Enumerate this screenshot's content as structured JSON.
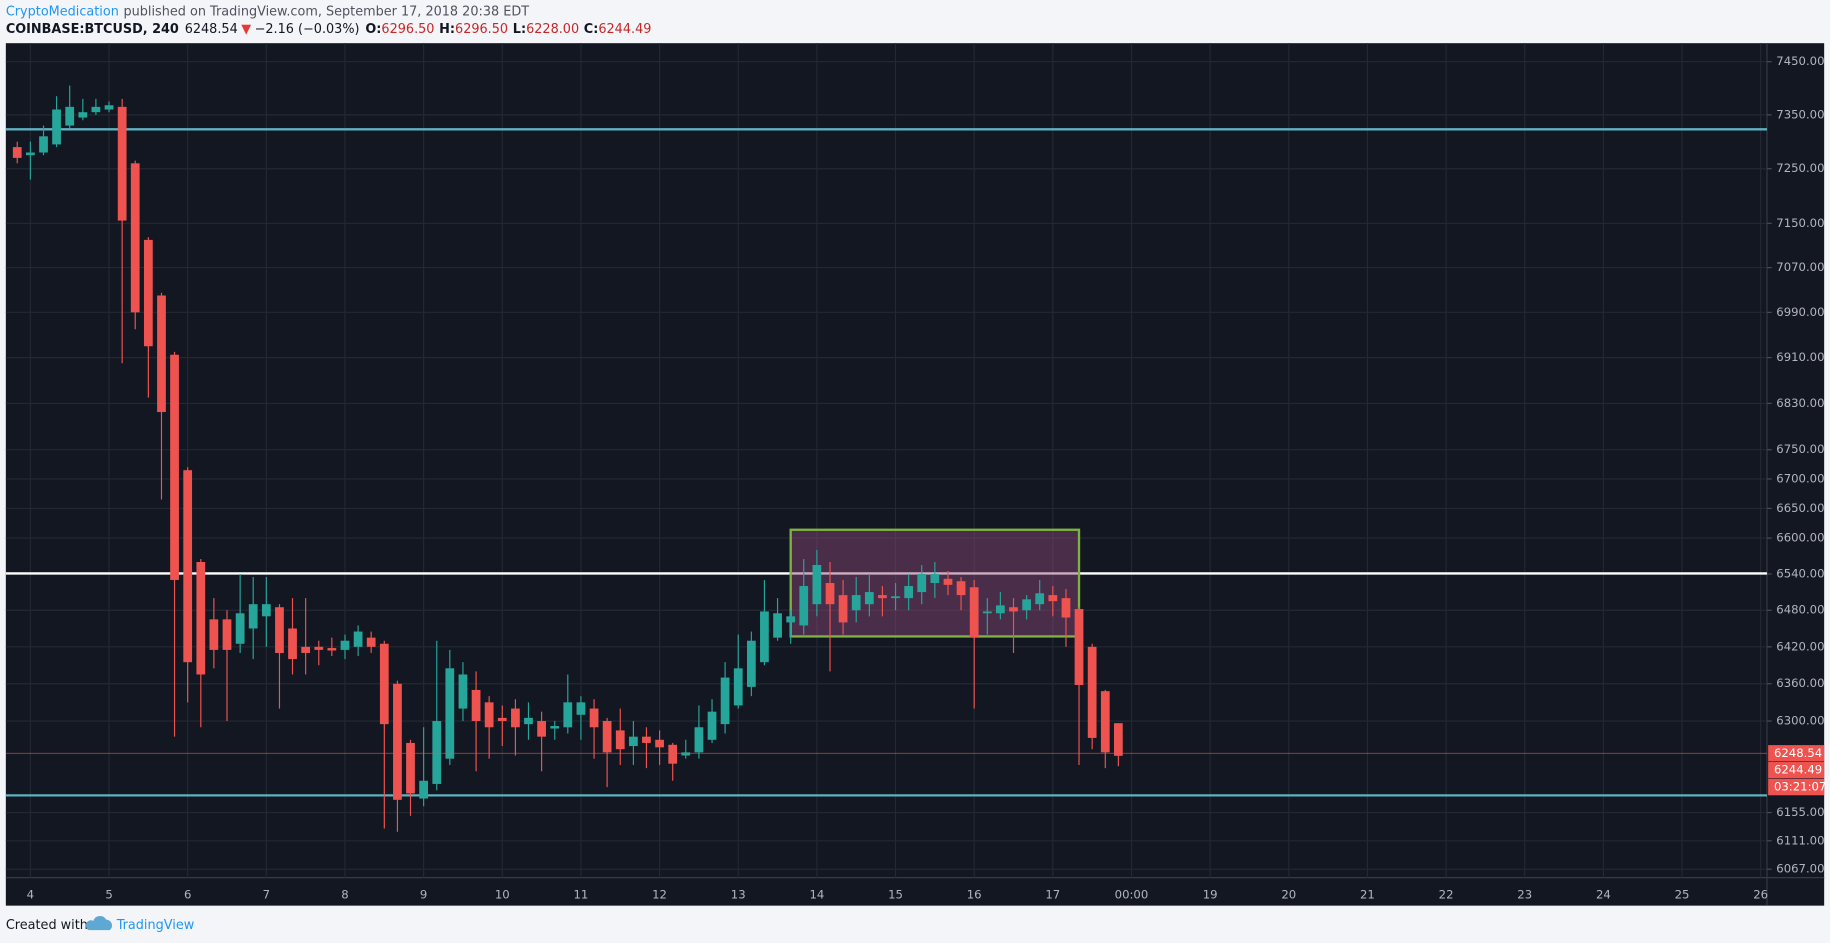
{
  "header": {
    "author": "CryptoMedication",
    "published": "published on TradingView.com, September 17, 2018 20:38 EDT",
    "symbol": "COINBASE:BTCUSD, 240",
    "price": "6248.54",
    "arrow": "▼",
    "change": "−2.16 (−0.03%)",
    "o_label": "O:",
    "o": "6296.50",
    "h_label": "H:",
    "h": "6296.50",
    "l_label": "L:",
    "l": "6228.00",
    "c_label": "C:",
    "c": "6244.49"
  },
  "chart_data": {
    "type": "candlestick",
    "x": [
      3.833,
      4,
      4.167,
      4.333,
      4.5,
      4.667,
      4.833,
      5,
      5.167,
      5.333,
      5.5,
      5.667,
      5.833,
      6,
      6.167,
      6.333,
      6.5,
      6.667,
      6.833,
      7,
      7.167,
      7.333,
      7.5,
      7.667,
      7.833,
      8,
      8.167,
      8.333,
      8.5,
      8.667,
      8.833,
      9,
      9.167,
      9.333,
      9.5,
      9.667,
      9.833,
      10,
      10.167,
      10.333,
      10.5,
      10.667,
      10.833,
      11,
      11.167,
      11.333,
      11.5,
      11.667,
      11.833,
      12,
      12.167,
      12.333,
      12.5,
      12.667,
      12.833,
      13,
      13.167,
      13.333,
      13.5,
      13.667,
      13.833,
      14,
      14.167,
      14.333,
      14.5,
      14.667,
      14.833,
      15,
      15.167,
      15.333,
      15.5,
      15.667,
      15.833,
      16,
      16.167,
      16.333,
      16.5,
      16.667,
      16.833,
      17,
      17.167,
      17.333,
      17.5,
      17.667,
      17.833
    ],
    "open": [
      7290,
      7275,
      7280,
      7295,
      7330,
      7345,
      7355,
      7360,
      7365,
      7260,
      7120,
      7020,
      6915,
      6715,
      6560,
      6465,
      6465,
      6425,
      6450,
      6470,
      6485,
      6450,
      6420,
      6420,
      6418,
      6415,
      6420,
      6435,
      6425,
      6360,
      6265,
      6177,
      6200,
      6240,
      6320,
      6350,
      6330,
      6305,
      6320,
      6295,
      6300,
      6288,
      6290,
      6310,
      6320,
      6300,
      6285,
      6260,
      6275,
      6270,
      6262,
      6245,
      6250,
      6270,
      6295,
      6325,
      6355,
      6395,
      6435,
      6460,
      6455,
      6490,
      6525,
      6505,
      6480,
      6490,
      6505,
      6500,
      6500,
      6510,
      6525,
      6532,
      6528,
      6518,
      6475,
      6475,
      6485,
      6480,
      6490,
      6505,
      6500,
      6482,
      6420,
      6348,
      6296.5
    ],
    "high": [
      7300,
      7300,
      7330,
      7385,
      7405,
      7380,
      7380,
      7375,
      7380,
      7265,
      7125,
      7025,
      6920,
      6720,
      6565,
      6500,
      6480,
      6540,
      6535,
      6535,
      6490,
      6500,
      6500,
      6430,
      6435,
      6440,
      6455,
      6445,
      6430,
      6365,
      6270,
      6290,
      6430,
      6415,
      6395,
      6380,
      6340,
      6325,
      6335,
      6330,
      6315,
      6300,
      6375,
      6340,
      6335,
      6305,
      6320,
      6300,
      6290,
      6285,
      6265,
      6270,
      6325,
      6335,
      6395,
      6440,
      6445,
      6530,
      6500,
      6480,
      6565,
      6580,
      6560,
      6530,
      6535,
      6540,
      6520,
      6525,
      6540,
      6555,
      6560,
      6545,
      6535,
      6530,
      6500,
      6510,
      6500,
      6505,
      6530,
      6520,
      6515,
      6485,
      6425,
      6350,
      6296.5
    ],
    "low": [
      7260,
      7230,
      7275,
      7290,
      7325,
      7340,
      7350,
      7355,
      6900,
      6960,
      6840,
      6665,
      6275,
      6330,
      6290,
      6385,
      6300,
      6410,
      6400,
      6420,
      6320,
      6375,
      6375,
      6390,
      6405,
      6400,
      6405,
      6410,
      6130,
      6125,
      6150,
      6165,
      6190,
      6230,
      6300,
      6220,
      6240,
      6260,
      6245,
      6270,
      6220,
      6270,
      6280,
      6270,
      6240,
      6195,
      6230,
      6230,
      6225,
      6230,
      6205,
      6240,
      6240,
      6265,
      6280,
      6320,
      6340,
      6390,
      6430,
      6425,
      6440,
      6470,
      6380,
      6440,
      6460,
      6470,
      6470,
      6480,
      6480,
      6490,
      6500,
      6505,
      6480,
      6320,
      6440,
      6465,
      6410,
      6465,
      6480,
      6470,
      6420,
      6230,
      6255,
      6225,
      6228
    ],
    "close": [
      7270,
      7280,
      7310,
      7360,
      7365,
      7355,
      7365,
      7368,
      7155,
      6990,
      6930,
      6815,
      6530,
      6395,
      6375,
      6415,
      6415,
      6475,
      6490,
      6490,
      6410,
      6400,
      6410,
      6415,
      6414,
      6430,
      6445,
      6420,
      6295,
      6175,
      6185,
      6205,
      6300,
      6385,
      6375,
      6300,
      6290,
      6300,
      6290,
      6305,
      6275,
      6292,
      6330,
      6330,
      6290,
      6250,
      6255,
      6275,
      6265,
      6258,
      6232,
      6250,
      6290,
      6315,
      6370,
      6385,
      6430,
      6478,
      6475,
      6470,
      6520,
      6555,
      6490,
      6460,
      6505,
      6510,
      6500,
      6503,
      6520,
      6540,
      6540,
      6522,
      6505,
      6435,
      6478,
      6488,
      6478,
      6498,
      6508,
      6495,
      6468,
      6358,
      6273,
      6250,
      6244.49
    ],
    "up_color": "#26a69a",
    "down_color": "#ef5350",
    "xlim": [
      3.688,
      26.08
    ],
    "xticks": [
      4,
      5,
      6,
      7,
      8,
      9,
      10,
      11,
      12,
      13,
      14,
      15,
      16,
      17,
      {
        "value": 18,
        "label": "00:00"
      },
      19,
      20,
      21,
      22,
      23,
      24,
      25,
      26
    ],
    "ylim": [
      6054,
      7483
    ],
    "log_scale": true,
    "grid": true,
    "yticks": [
      {
        "value": 7450,
        "label": "7450.00"
      },
      {
        "value": 7350,
        "label": "7350.00"
      },
      {
        "value": 7250,
        "label": "7250.00"
      },
      {
        "value": 7150,
        "label": "7150.00"
      },
      {
        "value": 7070,
        "label": "7070.00"
      },
      {
        "value": 6990,
        "label": "6990.00"
      },
      {
        "value": 6910,
        "label": "6910.00"
      },
      {
        "value": 6830,
        "label": "6830.00"
      },
      {
        "value": 6750,
        "label": "6750.00"
      },
      {
        "value": 6700,
        "label": "6700.00"
      },
      {
        "value": 6650,
        "label": "6650.00"
      },
      {
        "value": 6600,
        "label": "6600.00"
      },
      {
        "value": 6540,
        "label": "6540.00"
      },
      {
        "value": 6480,
        "label": "6480.00"
      },
      {
        "value": 6420,
        "label": "6420.00"
      },
      {
        "value": 6360,
        "label": "6360.00"
      },
      {
        "value": 6300,
        "label": "6300.00"
      },
      {
        "value": 6155,
        "label": "6155.00"
      },
      {
        "value": 6111,
        "label": "6111.00"
      },
      {
        "value": 6067,
        "label": "6067.00"
      }
    ],
    "levels": [
      {
        "value": 7323,
        "color": "#5fb3c1"
      },
      {
        "value": 6541,
        "color": "#ffffff"
      },
      {
        "value": 6182,
        "color": "#5fb3c1"
      }
    ],
    "box": {
      "x": [
        13.667,
        17.333
      ],
      "y": [
        6437,
        6614
      ],
      "color": "#7cb342",
      "fill": "#8e4a7a"
    },
    "price_tags": [
      6248.54,
      6244.49
    ],
    "countdown": "03:21:07"
  },
  "footer": {
    "created": "Created with",
    "brand": "TradingView"
  }
}
